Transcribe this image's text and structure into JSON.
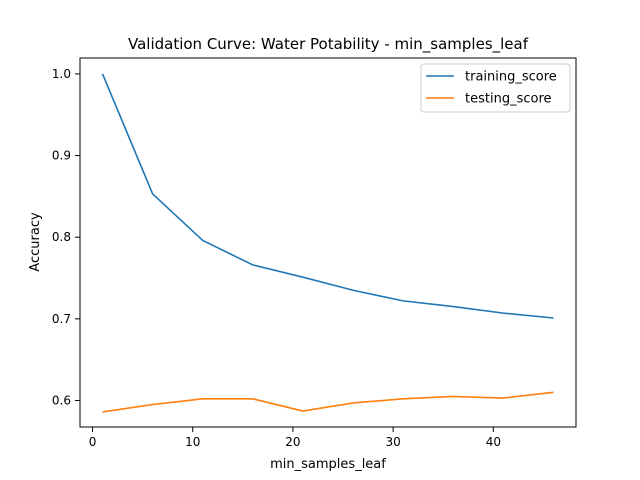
{
  "chart_data": {
    "type": "line",
    "title": "Validation Curve: Water Potability - min_samples_leaf",
    "xlabel": "min_samples_leaf",
    "ylabel": "Accuracy",
    "x": [
      1,
      6,
      11,
      16,
      21,
      26,
      31,
      36,
      41,
      46
    ],
    "xlim": [
      -1.25,
      48.25
    ],
    "ylim": [
      0.5675,
      1.0195
    ],
    "xticks": [
      0,
      10,
      20,
      30,
      40
    ],
    "yticks": [
      0.6,
      0.7,
      0.8,
      0.9,
      1.0
    ],
    "xtick_labels": [
      "0",
      "10",
      "20",
      "30",
      "40"
    ],
    "ytick_labels": [
      "0.6",
      "0.7",
      "0.8",
      "0.9",
      "1.0"
    ],
    "grid": false,
    "legend_position": "top-right",
    "series": [
      {
        "name": "training_score",
        "color": "#1f77b4",
        "values": [
          1.0,
          0.853,
          0.796,
          0.766,
          0.751,
          0.735,
          0.722,
          0.715,
          0.707,
          0.701
        ]
      },
      {
        "name": "testing_score",
        "color": "#ff7f0e",
        "values": [
          0.586,
          0.595,
          0.602,
          0.602,
          0.587,
          0.597,
          0.602,
          0.605,
          0.603,
          0.61
        ]
      }
    ]
  }
}
